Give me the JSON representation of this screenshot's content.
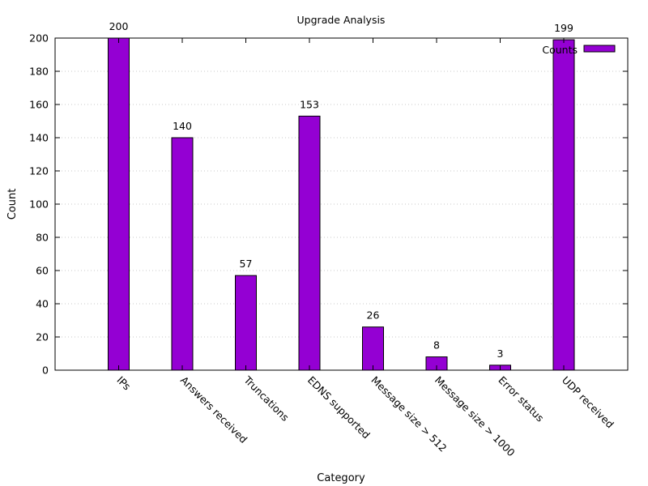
{
  "chart_data": {
    "type": "bar",
    "title": "Upgrade Analysis",
    "xlabel": "Category",
    "ylabel": "Count",
    "ylim": [
      0,
      200
    ],
    "yticks": [
      0,
      20,
      40,
      60,
      80,
      100,
      120,
      140,
      160,
      180,
      200
    ],
    "grid": "horizontal dotted",
    "legend_position": "top-right",
    "categories": [
      "IPs",
      "Answers received",
      "Truncations",
      "EDNS supported",
      "Message size > 512",
      "Message size > 1000",
      "Error status",
      "UDP received"
    ],
    "series": [
      {
        "name": "Counts",
        "color": "#9400d3",
        "values": [
          200,
          140,
          57,
          153,
          26,
          8,
          3,
          199
        ]
      }
    ]
  }
}
